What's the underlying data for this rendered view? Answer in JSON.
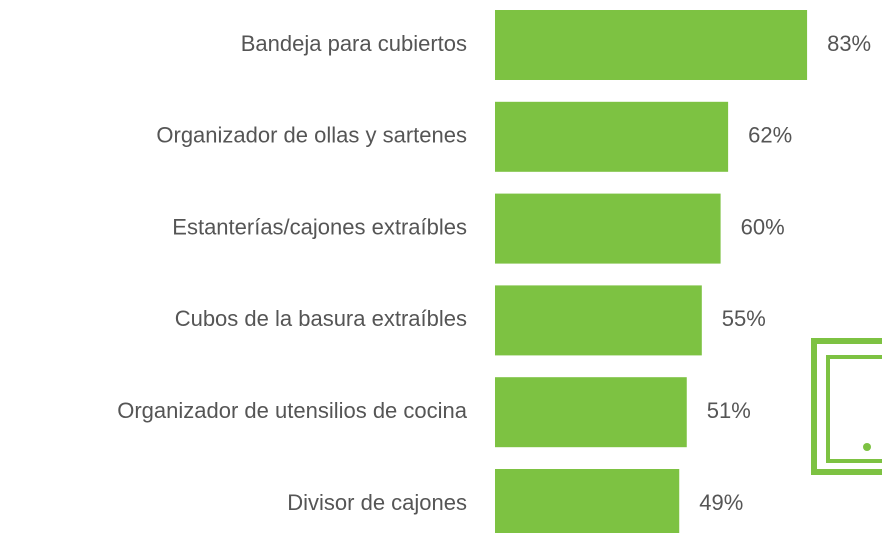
{
  "chart_data": {
    "type": "bar",
    "orientation": "horizontal",
    "categories": [
      "Bandeja para cubiertos",
      "Organizador de ollas y sartenes",
      "Estanterías/cajones extraíbles",
      "Cubos de la basura extraíbles",
      "Organizador de utensilios de cocina",
      "Divisor de cajones"
    ],
    "values": [
      83,
      62,
      60,
      55,
      51,
      49
    ],
    "value_labels": [
      "83%",
      "62%",
      "60%",
      "55%",
      "51%",
      "49%"
    ],
    "color": "#7dc242",
    "xlim": [
      0,
      100
    ]
  }
}
